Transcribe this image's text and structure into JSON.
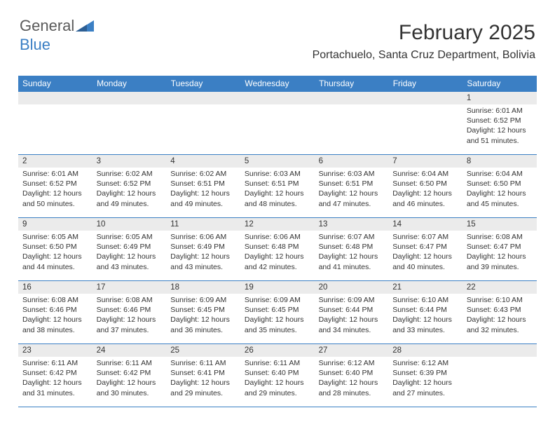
{
  "logo": {
    "text_general": "General",
    "text_blue": "Blue"
  },
  "header": {
    "month_title": "February 2025",
    "location": "Portachuelo, Santa Cruz Department, Bolivia"
  },
  "colors": {
    "header_bg": "#3b7fc4",
    "header_text": "#ffffff",
    "daynum_bg": "#ebebeb",
    "border": "#3b7fc4",
    "text": "#333333",
    "logo_gray": "#5a5a5a",
    "logo_blue": "#3b7fc4"
  },
  "day_headers": [
    "Sunday",
    "Monday",
    "Tuesday",
    "Wednesday",
    "Thursday",
    "Friday",
    "Saturday"
  ],
  "weeks": [
    [
      {
        "day": "",
        "lines": []
      },
      {
        "day": "",
        "lines": []
      },
      {
        "day": "",
        "lines": []
      },
      {
        "day": "",
        "lines": []
      },
      {
        "day": "",
        "lines": []
      },
      {
        "day": "",
        "lines": []
      },
      {
        "day": "1",
        "lines": [
          "Sunrise: 6:01 AM",
          "Sunset: 6:52 PM",
          "Daylight: 12 hours",
          "and 51 minutes."
        ]
      }
    ],
    [
      {
        "day": "2",
        "lines": [
          "Sunrise: 6:01 AM",
          "Sunset: 6:52 PM",
          "Daylight: 12 hours",
          "and 50 minutes."
        ]
      },
      {
        "day": "3",
        "lines": [
          "Sunrise: 6:02 AM",
          "Sunset: 6:52 PM",
          "Daylight: 12 hours",
          "and 49 minutes."
        ]
      },
      {
        "day": "4",
        "lines": [
          "Sunrise: 6:02 AM",
          "Sunset: 6:51 PM",
          "Daylight: 12 hours",
          "and 49 minutes."
        ]
      },
      {
        "day": "5",
        "lines": [
          "Sunrise: 6:03 AM",
          "Sunset: 6:51 PM",
          "Daylight: 12 hours",
          "and 48 minutes."
        ]
      },
      {
        "day": "6",
        "lines": [
          "Sunrise: 6:03 AM",
          "Sunset: 6:51 PM",
          "Daylight: 12 hours",
          "and 47 minutes."
        ]
      },
      {
        "day": "7",
        "lines": [
          "Sunrise: 6:04 AM",
          "Sunset: 6:50 PM",
          "Daylight: 12 hours",
          "and 46 minutes."
        ]
      },
      {
        "day": "8",
        "lines": [
          "Sunrise: 6:04 AM",
          "Sunset: 6:50 PM",
          "Daylight: 12 hours",
          "and 45 minutes."
        ]
      }
    ],
    [
      {
        "day": "9",
        "lines": [
          "Sunrise: 6:05 AM",
          "Sunset: 6:50 PM",
          "Daylight: 12 hours",
          "and 44 minutes."
        ]
      },
      {
        "day": "10",
        "lines": [
          "Sunrise: 6:05 AM",
          "Sunset: 6:49 PM",
          "Daylight: 12 hours",
          "and 43 minutes."
        ]
      },
      {
        "day": "11",
        "lines": [
          "Sunrise: 6:06 AM",
          "Sunset: 6:49 PM",
          "Daylight: 12 hours",
          "and 43 minutes."
        ]
      },
      {
        "day": "12",
        "lines": [
          "Sunrise: 6:06 AM",
          "Sunset: 6:48 PM",
          "Daylight: 12 hours",
          "and 42 minutes."
        ]
      },
      {
        "day": "13",
        "lines": [
          "Sunrise: 6:07 AM",
          "Sunset: 6:48 PM",
          "Daylight: 12 hours",
          "and 41 minutes."
        ]
      },
      {
        "day": "14",
        "lines": [
          "Sunrise: 6:07 AM",
          "Sunset: 6:47 PM",
          "Daylight: 12 hours",
          "and 40 minutes."
        ]
      },
      {
        "day": "15",
        "lines": [
          "Sunrise: 6:08 AM",
          "Sunset: 6:47 PM",
          "Daylight: 12 hours",
          "and 39 minutes."
        ]
      }
    ],
    [
      {
        "day": "16",
        "lines": [
          "Sunrise: 6:08 AM",
          "Sunset: 6:46 PM",
          "Daylight: 12 hours",
          "and 38 minutes."
        ]
      },
      {
        "day": "17",
        "lines": [
          "Sunrise: 6:08 AM",
          "Sunset: 6:46 PM",
          "Daylight: 12 hours",
          "and 37 minutes."
        ]
      },
      {
        "day": "18",
        "lines": [
          "Sunrise: 6:09 AM",
          "Sunset: 6:45 PM",
          "Daylight: 12 hours",
          "and 36 minutes."
        ]
      },
      {
        "day": "19",
        "lines": [
          "Sunrise: 6:09 AM",
          "Sunset: 6:45 PM",
          "Daylight: 12 hours",
          "and 35 minutes."
        ]
      },
      {
        "day": "20",
        "lines": [
          "Sunrise: 6:09 AM",
          "Sunset: 6:44 PM",
          "Daylight: 12 hours",
          "and 34 minutes."
        ]
      },
      {
        "day": "21",
        "lines": [
          "Sunrise: 6:10 AM",
          "Sunset: 6:44 PM",
          "Daylight: 12 hours",
          "and 33 minutes."
        ]
      },
      {
        "day": "22",
        "lines": [
          "Sunrise: 6:10 AM",
          "Sunset: 6:43 PM",
          "Daylight: 12 hours",
          "and 32 minutes."
        ]
      }
    ],
    [
      {
        "day": "23",
        "lines": [
          "Sunrise: 6:11 AM",
          "Sunset: 6:42 PM",
          "Daylight: 12 hours",
          "and 31 minutes."
        ]
      },
      {
        "day": "24",
        "lines": [
          "Sunrise: 6:11 AM",
          "Sunset: 6:42 PM",
          "Daylight: 12 hours",
          "and 30 minutes."
        ]
      },
      {
        "day": "25",
        "lines": [
          "Sunrise: 6:11 AM",
          "Sunset: 6:41 PM",
          "Daylight: 12 hours",
          "and 29 minutes."
        ]
      },
      {
        "day": "26",
        "lines": [
          "Sunrise: 6:11 AM",
          "Sunset: 6:40 PM",
          "Daylight: 12 hours",
          "and 29 minutes."
        ]
      },
      {
        "day": "27",
        "lines": [
          "Sunrise: 6:12 AM",
          "Sunset: 6:40 PM",
          "Daylight: 12 hours",
          "and 28 minutes."
        ]
      },
      {
        "day": "28",
        "lines": [
          "Sunrise: 6:12 AM",
          "Sunset: 6:39 PM",
          "Daylight: 12 hours",
          "and 27 minutes."
        ]
      },
      {
        "day": "",
        "lines": []
      }
    ]
  ]
}
